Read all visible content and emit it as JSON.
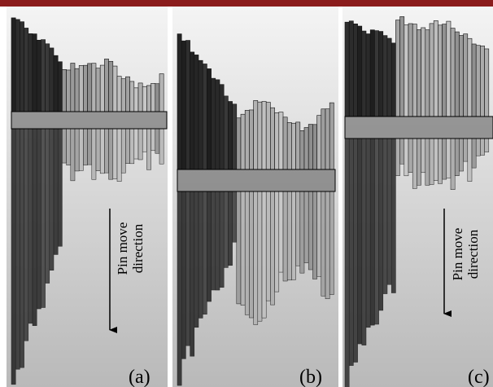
{
  "panels": [
    {
      "label": "(a)",
      "annotation": [
        "Pin move",
        "direction"
      ]
    },
    {
      "label": "(b)"
    },
    {
      "label": "(c)",
      "annotation": [
        "Pin move",
        "direction"
      ]
    }
  ]
}
